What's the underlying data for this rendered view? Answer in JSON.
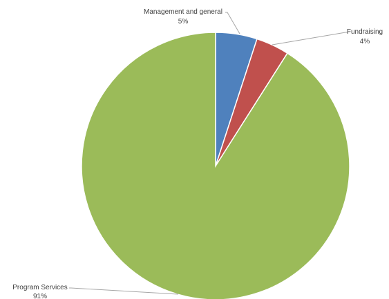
{
  "chart_data": {
    "type": "pie",
    "title": "",
    "start_angle_deg": 0,
    "direction": "clockwise",
    "legend": "none",
    "slices": [
      {
        "label": "Management and general",
        "value": 5,
        "value_label": "5%",
        "color": "#4f81bd"
      },
      {
        "label": "Fundraising",
        "value": 4,
        "value_label": "4%",
        "color": "#c0504d"
      },
      {
        "label": "Program Services",
        "value": 91,
        "value_label": "91%",
        "color": "#9bbb59"
      }
    ]
  }
}
